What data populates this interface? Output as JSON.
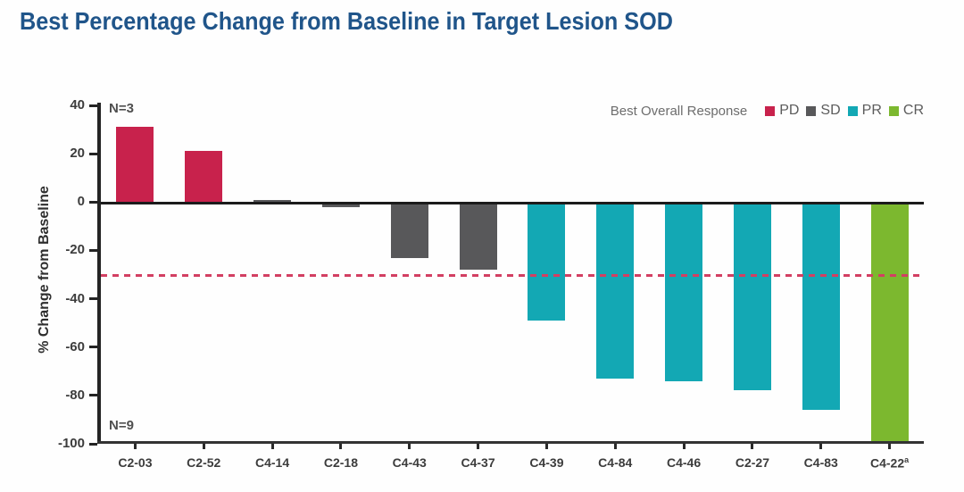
{
  "figure": {
    "background": "#fefefe",
    "title_color": "#20558A"
  },
  "chart_data": {
    "type": "bar",
    "title": "Best Percentage Change from Baseline in Target Lesion SOD",
    "ylabel": "% Change from Baseline",
    "xlabel": "",
    "ylim": [
      -100,
      40
    ],
    "yticks": [
      40,
      20,
      0,
      -20,
      -40,
      -60,
      -80,
      -100
    ],
    "grid": false,
    "reference_line": {
      "y": -30,
      "style": "dashed",
      "color": "#D23F62"
    },
    "annotations": [
      {
        "text": "N=3",
        "position": "top-left"
      },
      {
        "text": "N=9",
        "position": "bottom-left"
      }
    ],
    "legend": {
      "title": "Best Overall Response",
      "position": "top-right",
      "entries": [
        {
          "label": "PD",
          "color": "#C8224C"
        },
        {
          "label": "SD",
          "color": "#58585A"
        },
        {
          "label": "PR",
          "color": "#13A8B4"
        },
        {
          "label": "CR",
          "color": "#7CB82F"
        }
      ]
    },
    "categories": [
      "C2-03",
      "C2-52",
      "C4-14",
      "C2-18",
      "C4-43",
      "C4-37",
      "C4-39",
      "C4-84",
      "C4-46",
      "C2-27",
      "C4-83",
      "C4-22"
    ],
    "category_footnote_marks": [
      "",
      "",
      "",
      "",
      "",
      "",
      "",
      "",
      "",
      "",
      "",
      "a"
    ],
    "values": [
      31,
      21,
      1,
      -2,
      -23,
      -28,
      -49,
      -73,
      -74,
      -78,
      -86,
      -100
    ],
    "responses": [
      "PD",
      "PD",
      "SD",
      "SD",
      "SD",
      "SD",
      "PR",
      "PR",
      "PR",
      "PR",
      "PR",
      "CR"
    ]
  }
}
